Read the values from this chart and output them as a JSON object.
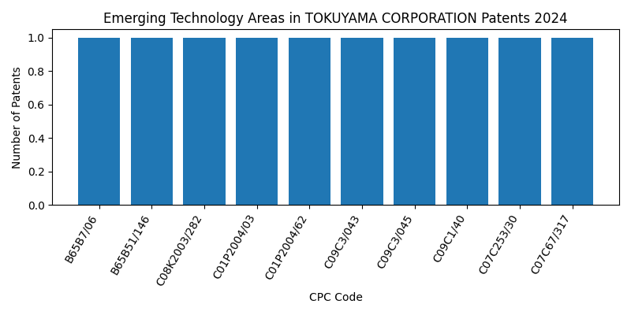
{
  "title": "Emerging Technology Areas in TOKUYAMA CORPORATION Patents 2024",
  "xlabel": "CPC Code",
  "ylabel": "Number of Patents",
  "categories": [
    "B65B7/06",
    "B65B51/146",
    "C08K2003/282",
    "C01P2004/03",
    "C01P2004/62",
    "C09C3/043",
    "C09C3/045",
    "C09C1/40",
    "C07C253/30",
    "C07C67/317"
  ],
  "values": [
    1,
    1,
    1,
    1,
    1,
    1,
    1,
    1,
    1,
    1
  ],
  "bar_color": "#2077b4",
  "ylim": [
    0,
    1.05
  ],
  "yticks": [
    0.0,
    0.2,
    0.4,
    0.6,
    0.8,
    1.0
  ],
  "figsize": [
    8.0,
    4.0
  ],
  "dpi": 100,
  "bar_width": 0.8,
  "tick_rotation": 60
}
